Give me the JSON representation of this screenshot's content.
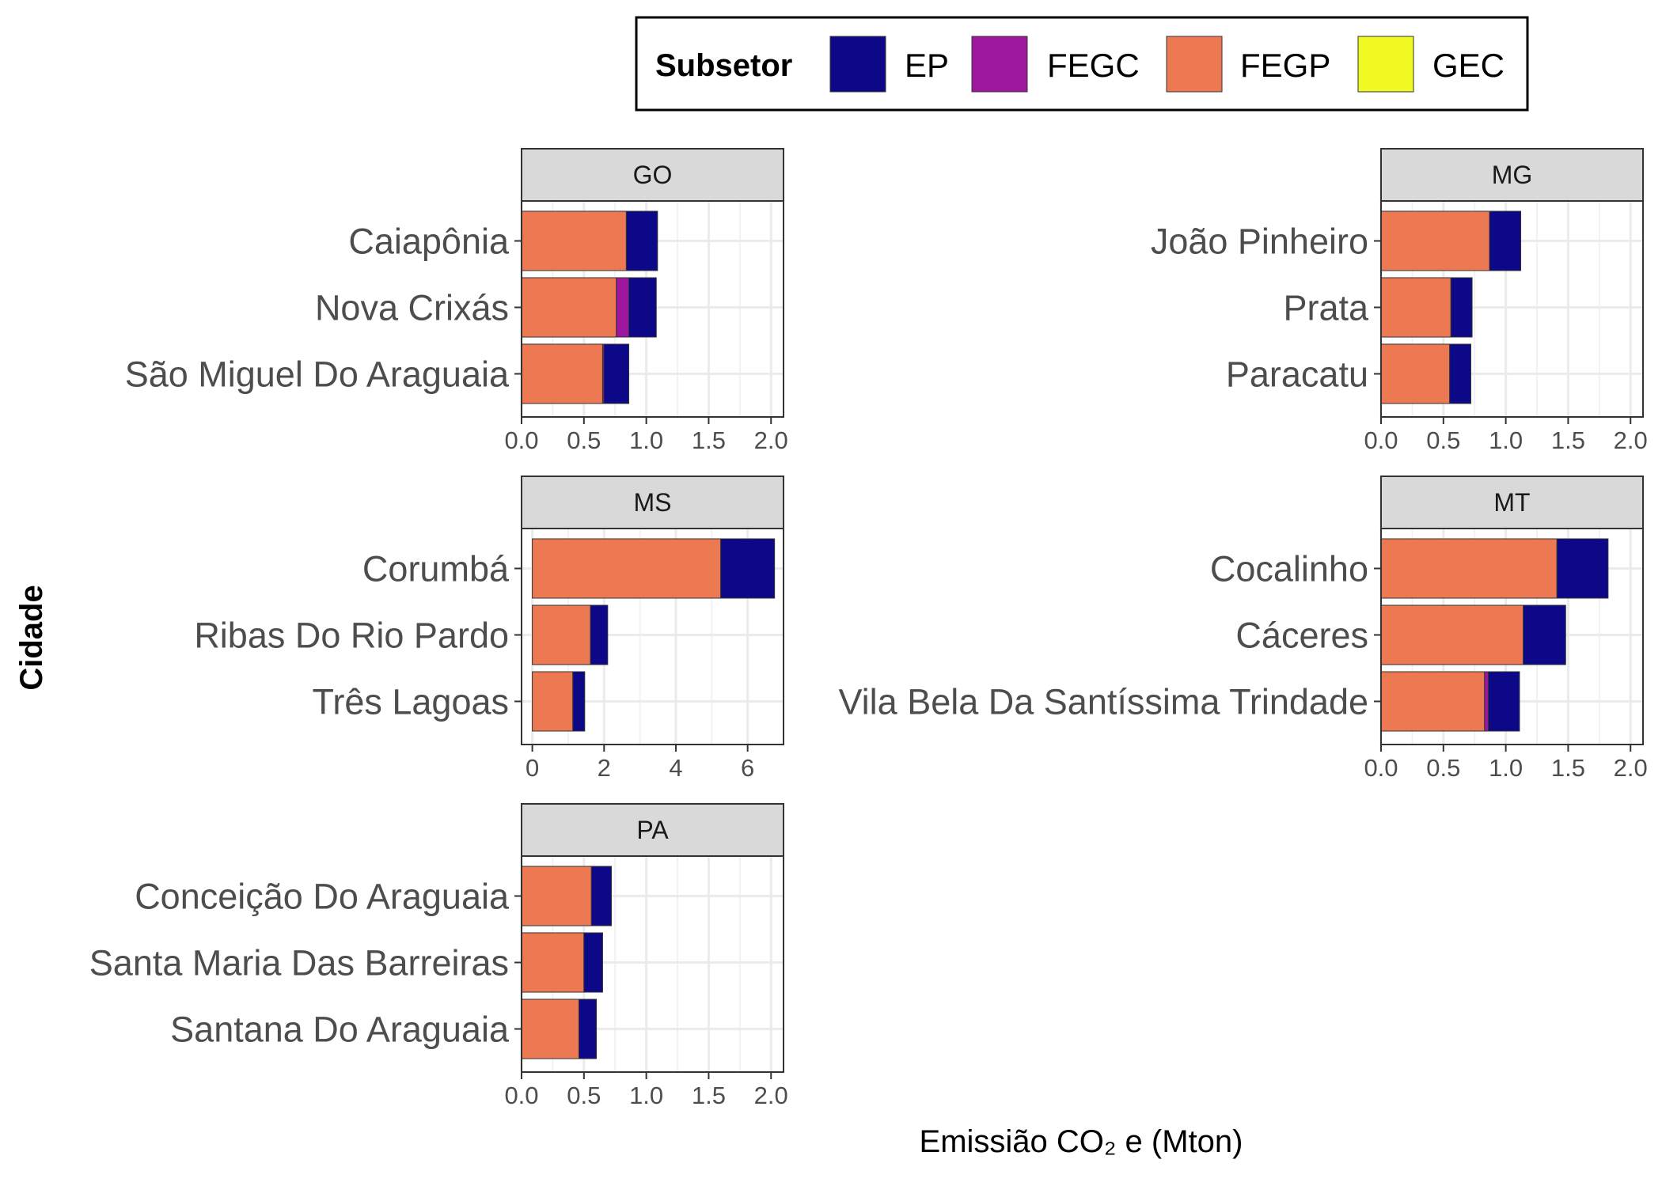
{
  "chart_data": {
    "type": "bar",
    "orientation": "horizontal",
    "stacked": true,
    "xlabel": "Emissião CO₂ e (Mton)",
    "ylabel": "Cidade",
    "legend": {
      "title": "Subsetor",
      "position": "top",
      "entries": [
        {
          "name": "EP",
          "color": "#0d0887"
        },
        {
          "name": "FEGC",
          "color": "#9c179e"
        },
        {
          "name": "FEGP",
          "color": "#ed7953"
        },
        {
          "name": "GEC",
          "color": "#f0f921"
        }
      ]
    },
    "stack_order": [
      "FEGP",
      "FEGC",
      "GEC",
      "EP"
    ],
    "grid": true,
    "panels": [
      {
        "facet": "GO",
        "xlim": [
          0,
          2.1
        ],
        "ticks": [
          0,
          0.5,
          1,
          1.5,
          2
        ],
        "tick_labels": [
          "0.0",
          "0.5",
          "1.0",
          "1.5",
          "2.0"
        ],
        "categories": [
          "Caiapônia",
          "Nova Crixás",
          "São Miguel Do Araguaia"
        ],
        "series": [
          {
            "name": "FEGP",
            "values": [
              0.84,
              0.76,
              0.65
            ]
          },
          {
            "name": "FEGC",
            "values": [
              0.0,
              0.1,
              0.01
            ]
          },
          {
            "name": "GEC",
            "values": [
              0,
              0,
              0
            ]
          },
          {
            "name": "EP",
            "values": [
              0.25,
              0.22,
              0.2
            ]
          }
        ]
      },
      {
        "facet": "MG",
        "xlim": [
          0,
          2.1
        ],
        "ticks": [
          0,
          0.5,
          1,
          1.5,
          2
        ],
        "tick_labels": [
          "0.0",
          "0.5",
          "1.0",
          "1.5",
          "2.0"
        ],
        "categories": [
          "João Pinheiro",
          "Prata",
          "Paracatu"
        ],
        "series": [
          {
            "name": "FEGP",
            "values": [
              0.87,
              0.56,
              0.55
            ]
          },
          {
            "name": "FEGC",
            "values": [
              0,
              0,
              0
            ]
          },
          {
            "name": "GEC",
            "values": [
              0,
              0,
              0
            ]
          },
          {
            "name": "EP",
            "values": [
              0.25,
              0.17,
              0.17
            ]
          }
        ]
      },
      {
        "facet": "MS",
        "xlim": [
          -0.3,
          7.0
        ],
        "ticks": [
          0,
          2,
          4,
          6
        ],
        "tick_labels": [
          "0",
          "2",
          "4",
          "6"
        ],
        "categories": [
          "Corumbá",
          "Ribas Do Rio Pardo",
          "Três Lagoas"
        ],
        "series": [
          {
            "name": "FEGP",
            "values": [
              5.25,
              1.62,
              1.13
            ]
          },
          {
            "name": "FEGC",
            "values": [
              0,
              0,
              0
            ]
          },
          {
            "name": "GEC",
            "values": [
              0,
              0,
              0
            ]
          },
          {
            "name": "EP",
            "values": [
              1.5,
              0.48,
              0.33
            ]
          }
        ]
      },
      {
        "facet": "MT",
        "xlim": [
          0,
          2.1
        ],
        "ticks": [
          0,
          0.5,
          1,
          1.5,
          2
        ],
        "tick_labels": [
          "0.0",
          "0.5",
          "1.0",
          "1.5",
          "2.0"
        ],
        "categories": [
          "Cocalinho",
          "Cáceres",
          "Vila Bela Da Santíssima Trindade"
        ],
        "series": [
          {
            "name": "FEGP",
            "values": [
              1.41,
              1.14,
              0.83
            ]
          },
          {
            "name": "FEGC",
            "values": [
              0,
              0,
              0.03
            ]
          },
          {
            "name": "GEC",
            "values": [
              0,
              0,
              0
            ]
          },
          {
            "name": "EP",
            "values": [
              0.41,
              0.34,
              0.25
            ]
          }
        ]
      },
      {
        "facet": "PA",
        "xlim": [
          0,
          2.1
        ],
        "ticks": [
          0,
          0.5,
          1,
          1.5,
          2
        ],
        "tick_labels": [
          "0.0",
          "0.5",
          "1.0",
          "1.5",
          "2.0"
        ],
        "categories": [
          "Conceição Do Araguaia",
          "Santa Maria Das Barreiras",
          "Santana Do Araguaia"
        ],
        "series": [
          {
            "name": "FEGP",
            "values": [
              0.56,
              0.5,
              0.46
            ]
          },
          {
            "name": "FEGC",
            "values": [
              0,
              0,
              0
            ]
          },
          {
            "name": "GEC",
            "values": [
              0,
              0,
              0
            ]
          },
          {
            "name": "EP",
            "values": [
              0.16,
              0.15,
              0.14
            ]
          }
        ]
      }
    ]
  }
}
